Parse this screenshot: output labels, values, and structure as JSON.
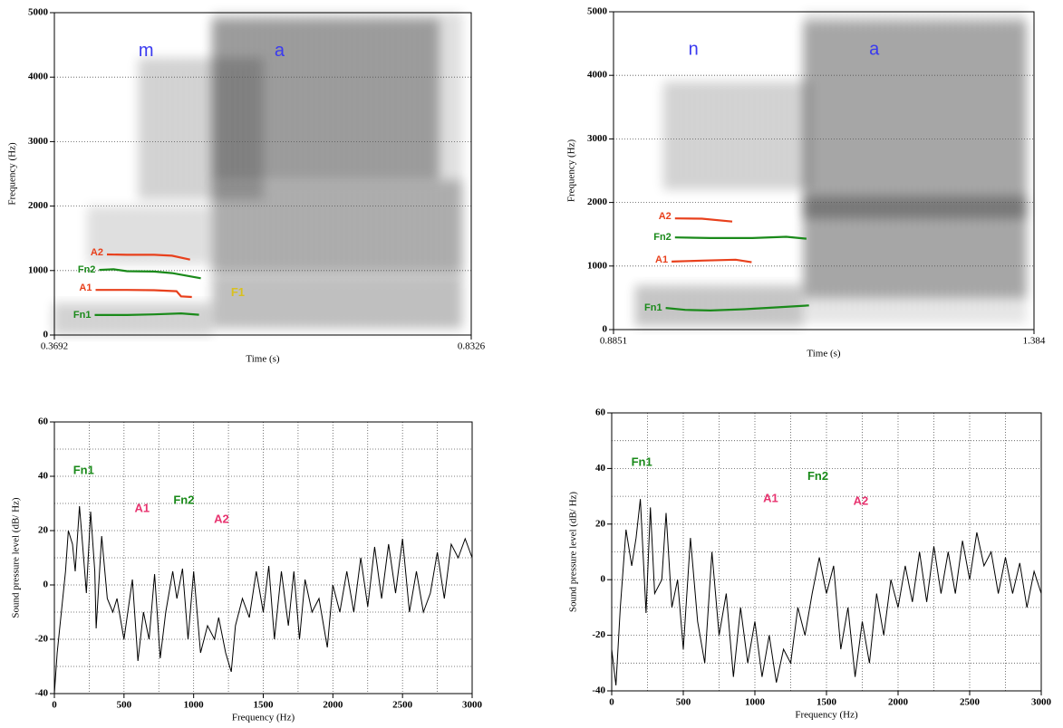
{
  "chart_data": [
    {
      "type": "spectrogram",
      "x_label": "Time (s)",
      "y_label": "Frequency (Hz)",
      "xlim": [
        0.3692,
        0.8326
      ],
      "xticks": [
        0.3692,
        0.8326
      ],
      "ylim": [
        0,
        5000
      ],
      "yticks": [
        0,
        1000,
        2000,
        3000,
        4000,
        5000
      ],
      "grid": true,
      "annotations": [
        {
          "text": "m",
          "color": "#3a3af0"
        },
        {
          "text": "a",
          "color": "#3a3af0"
        },
        {
          "text": "F1",
          "color": "#d8c020"
        }
      ],
      "series": [
        {
          "name": "A2",
          "color": "#e8401c",
          "x": [
            0.4276,
            0.45,
            0.48,
            0.5,
            0.52
          ],
          "values": [
            1250,
            1245,
            1245,
            1230,
            1170
          ]
        },
        {
          "name": "Fn2",
          "color": "#1a8a1a",
          "x": [
            0.419,
            0.435,
            0.45,
            0.48,
            0.5,
            0.532
          ],
          "values": [
            1010,
            1020,
            990,
            985,
            960,
            880
          ]
        },
        {
          "name": "A1",
          "color": "#e8401c",
          "x": [
            0.415,
            0.45,
            0.48,
            0.505,
            0.51,
            0.522
          ],
          "values": [
            700,
            700,
            695,
            680,
            600,
            590
          ]
        },
        {
          "name": "Fn1",
          "color": "#1a8a1a",
          "x": [
            0.414,
            0.45,
            0.48,
            0.51,
            0.53
          ],
          "values": [
            310,
            310,
            320,
            335,
            315
          ]
        }
      ]
    },
    {
      "type": "spectrogram",
      "x_label": "Time (s)",
      "y_label": "Frequency (Hz)",
      "xlim": [
        0.8851,
        1.384
      ],
      "xticks": [
        0.8851,
        1.384
      ],
      "ylim": [
        0,
        5000
      ],
      "yticks": [
        0,
        1000,
        2000,
        3000,
        4000,
        5000
      ],
      "grid": true,
      "annotations": [
        {
          "text": "n",
          "color": "#3a3af0"
        },
        {
          "text": "a",
          "color": "#3a3af0"
        }
      ],
      "series": [
        {
          "name": "A2",
          "color": "#e8401c",
          "x": [
            0.958,
            0.99,
            1.026
          ],
          "values": [
            1750,
            1745,
            1700
          ]
        },
        {
          "name": "Fn2",
          "color": "#1a8a1a",
          "x": [
            0.958,
            1.0,
            1.05,
            1.09,
            1.114
          ],
          "values": [
            1450,
            1440,
            1440,
            1460,
            1430
          ]
        },
        {
          "name": "A1",
          "color": "#e8401c",
          "x": [
            0.954,
            0.99,
            1.03,
            1.049
          ],
          "values": [
            1070,
            1085,
            1100,
            1060
          ]
        },
        {
          "name": "Fn1",
          "color": "#1a8a1a",
          "x": [
            0.947,
            0.97,
            1.0,
            1.04,
            1.08,
            1.117
          ],
          "values": [
            340,
            310,
            300,
            320,
            350,
            380
          ]
        }
      ]
    },
    {
      "type": "line",
      "x_label": "Frequency (Hz)",
      "y_label": "Sound pressure level (dB/ Hz)",
      "xlim": [
        0,
        3000
      ],
      "xticks": [
        0,
        500,
        1000,
        1500,
        2000,
        2500,
        3000
      ],
      "ylim": [
        -40,
        60
      ],
      "yticks": [
        -40,
        -20,
        0,
        20,
        40,
        60
      ],
      "grid": true,
      "annotations": [
        {
          "text": "Fn1",
          "color": "#1a8a1a"
        },
        {
          "text": "A1",
          "color": "#e8336f"
        },
        {
          "text": "Fn2",
          "color": "#1a8a1a"
        },
        {
          "text": "A2",
          "color": "#e8336f"
        }
      ],
      "series": [
        {
          "color": "#000000",
          "x": [
            0,
            20,
            50,
            80,
            100,
            130,
            150,
            180,
            210,
            230,
            260,
            290,
            300,
            340,
            380,
            420,
            450,
            500,
            560,
            600,
            640,
            680,
            720,
            760,
            800,
            850,
            880,
            920,
            960,
            1000,
            1050,
            1100,
            1150,
            1180,
            1230,
            1270,
            1300,
            1350,
            1400,
            1450,
            1500,
            1540,
            1580,
            1630,
            1680,
            1720,
            1760,
            1800,
            1850,
            1900,
            1960,
            2000,
            2050,
            2100,
            2150,
            2200,
            2250,
            2300,
            2350,
            2400,
            2450,
            2500,
            2550,
            2600,
            2650,
            2700,
            2750,
            2800,
            2850,
            2900,
            2950,
            3000
          ],
          "values": [
            -40,
            -25,
            -10,
            5,
            20,
            15,
            5,
            29,
            10,
            -3,
            27,
            5,
            -16,
            18,
            -5,
            -10,
            -5,
            -20,
            2,
            -28,
            -10,
            -20,
            4,
            -27,
            -10,
            5,
            -5,
            6,
            -20,
            5,
            -25,
            -15,
            -20,
            -12,
            -25,
            -32,
            -15,
            -5,
            -12,
            5,
            -10,
            7,
            -20,
            5,
            -15,
            5,
            -20,
            2,
            -10,
            -5,
            -23,
            0,
            -10,
            5,
            -10,
            10,
            -8,
            14,
            -5,
            15,
            -3,
            17,
            -10,
            5,
            -10,
            -3,
            12,
            -5,
            15,
            10,
            17,
            10
          ]
        }
      ]
    },
    {
      "type": "line",
      "x_label": "Frequency (Hz)",
      "y_label": "Sound pressure level (dB/ Hz)",
      "xlim": [
        0,
        3000
      ],
      "xticks": [
        0,
        500,
        1000,
        1500,
        2000,
        2500,
        3000
      ],
      "ylim": [
        -40,
        60
      ],
      "yticks": [
        -40,
        -20,
        0,
        20,
        40,
        60
      ],
      "grid": true,
      "annotations": [
        {
          "text": "Fn1",
          "color": "#1a8a1a"
        },
        {
          "text": "A1",
          "color": "#e8336f"
        },
        {
          "text": "Fn2",
          "color": "#1a8a1a"
        },
        {
          "text": "A2",
          "color": "#e8336f"
        }
      ],
      "series": [
        {
          "color": "#000000",
          "x": [
            0,
            30,
            60,
            100,
            140,
            170,
            200,
            240,
            270,
            300,
            350,
            380,
            420,
            460,
            500,
            550,
            600,
            650,
            700,
            750,
            800,
            850,
            900,
            950,
            1000,
            1050,
            1100,
            1150,
            1200,
            1250,
            1300,
            1350,
            1400,
            1450,
            1500,
            1550,
            1600,
            1650,
            1700,
            1750,
            1800,
            1850,
            1900,
            1950,
            2000,
            2050,
            2100,
            2150,
            2200,
            2250,
            2300,
            2350,
            2400,
            2450,
            2500,
            2550,
            2600,
            2650,
            2700,
            2750,
            2800,
            2850,
            2900,
            2950,
            3000
          ],
          "values": [
            -25,
            -38,
            -10,
            18,
            5,
            15,
            29,
            -12,
            26,
            -5,
            0,
            24,
            -10,
            0,
            -25,
            15,
            -15,
            -30,
            10,
            -20,
            -5,
            -35,
            -10,
            -30,
            -15,
            -35,
            -20,
            -37,
            -25,
            -30,
            -10,
            -20,
            -5,
            8,
            -5,
            5,
            -25,
            -10,
            -35,
            -15,
            -30,
            -5,
            -20,
            0,
            -10,
            5,
            -8,
            10,
            -8,
            12,
            -5,
            10,
            -5,
            14,
            0,
            17,
            5,
            10,
            -5,
            8,
            -5,
            6,
            -10,
            3,
            -5
          ]
        }
      ]
    }
  ]
}
